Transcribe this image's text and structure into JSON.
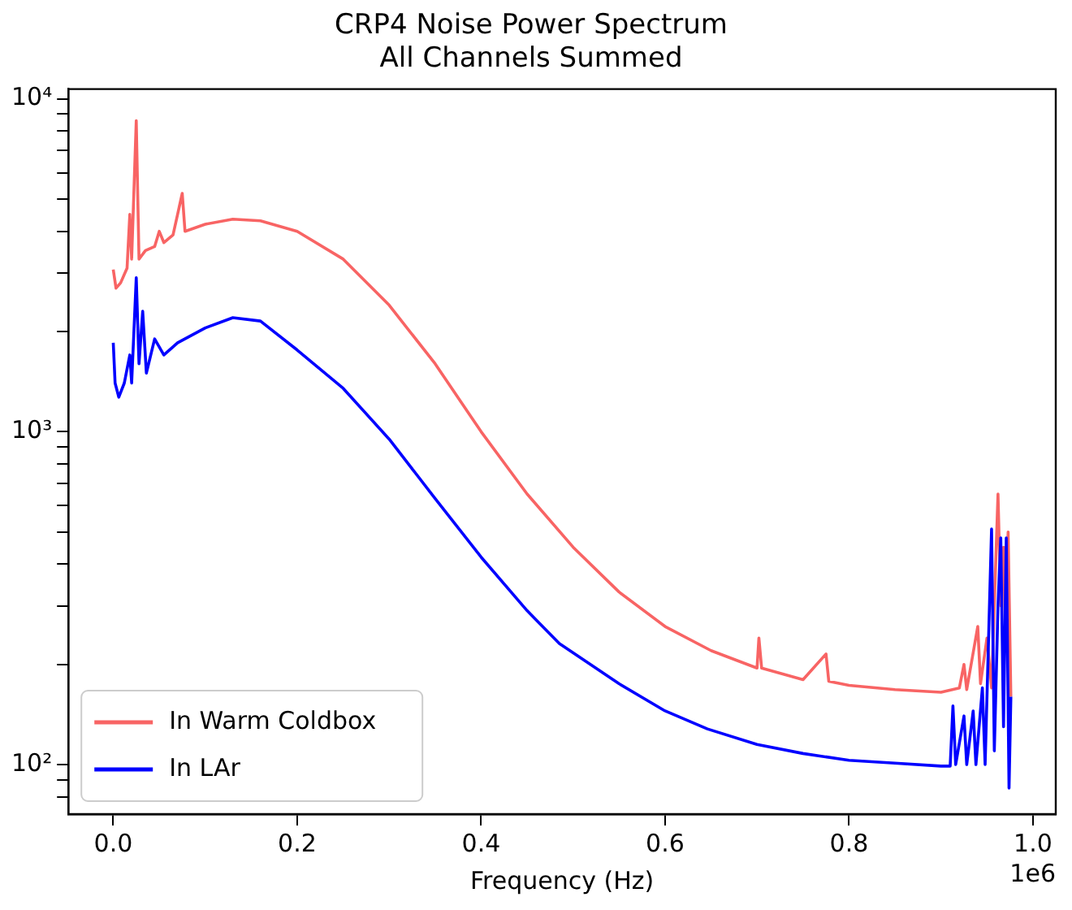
{
  "chart_data": {
    "type": "line",
    "title": "CRP4 Noise Power Spectrum",
    "subtitle": "All Channels Summed",
    "xlabel": "Frequency (Hz)",
    "annotations": [
      "1e6"
    ],
    "log": "y",
    "legend": "bottom left",
    "grid": false,
    "marker": "none",
    "line_style": "solid",
    "xlim": [
      -0.0488,
      1.0248
    ],
    "xticks": [
      {
        "value": 0,
        "label": "0.0"
      },
      0.2,
      0.4,
      0.6,
      0.8,
      {
        "value": 1,
        "label": "1.0"
      }
    ],
    "ylim": [
      71,
      10700
    ],
    "yticks": [
      {
        "value": 80,
        "label": null
      },
      {
        "value": 90,
        "label": null
      },
      {
        "value": 100,
        "label": "10²"
      },
      {
        "value": 200,
        "label": null
      },
      {
        "value": 300,
        "label": null
      },
      {
        "value": 400,
        "label": null
      },
      {
        "value": 500,
        "label": null
      },
      {
        "value": 600,
        "label": null
      },
      {
        "value": 700,
        "label": null
      },
      {
        "value": 800,
        "label": null
      },
      {
        "value": 900,
        "label": null
      },
      {
        "value": 1000,
        "label": "10³"
      },
      {
        "value": 2000,
        "label": null
      },
      {
        "value": 3000,
        "label": null
      },
      {
        "value": 4000,
        "label": null
      },
      {
        "value": 5000,
        "label": null
      },
      {
        "value": 6000,
        "label": null
      },
      {
        "value": 7000,
        "label": null
      },
      {
        "value": 8000,
        "label": null
      },
      {
        "value": 9000,
        "label": null
      },
      {
        "value": 10000,
        "label": "10⁴"
      }
    ],
    "series": [
      {
        "name": "In Warm Coldbox",
        "color": "#f86464",
        "x": [
          0,
          0.003,
          0.008,
          0.015,
          0.018,
          0.02,
          0.025,
          0.028,
          0.035,
          0.045,
          0.05,
          0.055,
          0.065,
          0.075,
          0.078,
          0.1,
          0.13,
          0.16,
          0.2,
          0.25,
          0.3,
          0.35,
          0.4,
          0.45,
          0.5,
          0.55,
          0.6,
          0.65,
          0.7,
          0.702,
          0.705,
          0.75,
          0.775,
          0.778,
          0.8,
          0.85,
          0.9,
          0.92,
          0.925,
          0.928,
          0.94,
          0.943,
          0.95,
          0.955,
          0.962,
          0.965,
          0.968,
          0.97,
          0.973,
          0.976
        ],
        "values": [
          3070,
          2700,
          2800,
          3100,
          4500,
          3300,
          8600,
          3300,
          3500,
          3600,
          4000,
          3700,
          3900,
          5200,
          4000,
          4200,
          4350,
          4300,
          4000,
          3300,
          2400,
          1600,
          1000,
          650,
          450,
          330,
          260,
          220,
          195,
          240,
          195,
          180,
          215,
          178,
          173,
          168,
          165,
          170,
          200,
          168,
          260,
          175,
          240,
          170,
          650,
          300,
          450,
          250,
          500,
          160
        ]
      },
      {
        "name": "In LAr",
        "color": "#0000ff",
        "x": [
          0,
          0.002,
          0.006,
          0.012,
          0.018,
          0.02,
          0.025,
          0.028,
          0.032,
          0.036,
          0.045,
          0.055,
          0.07,
          0.1,
          0.13,
          0.16,
          0.2,
          0.25,
          0.3,
          0.35,
          0.4,
          0.45,
          0.485,
          0.55,
          0.6,
          0.646,
          0.7,
          0.75,
          0.8,
          0.85,
          0.9,
          0.91,
          0.913,
          0.916,
          0.925,
          0.928,
          0.935,
          0.938,
          0.945,
          0.948,
          0.955,
          0.958,
          0.962,
          0.965,
          0.968,
          0.971,
          0.974,
          0.976
        ],
        "values": [
          1850,
          1400,
          1270,
          1400,
          1700,
          1400,
          2900,
          1600,
          2300,
          1500,
          1900,
          1700,
          1850,
          2050,
          2200,
          2150,
          1760,
          1350,
          950,
          630,
          420,
          290,
          231,
          175,
          145,
          128,
          115,
          108,
          103,
          101,
          99,
          99,
          150,
          100,
          140,
          100,
          145,
          100,
          170,
          100,
          510,
          110,
          300,
          480,
          130,
          480,
          85,
          160
        ]
      }
    ]
  }
}
